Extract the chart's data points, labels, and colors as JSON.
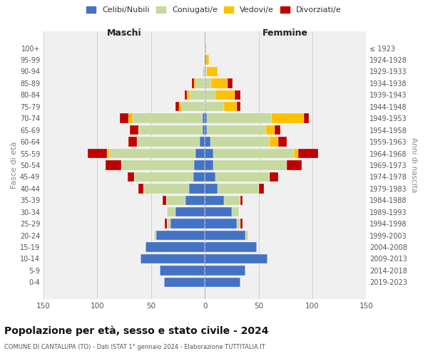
{
  "age_groups": [
    "0-4",
    "5-9",
    "10-14",
    "15-19",
    "20-24",
    "25-29",
    "30-34",
    "35-39",
    "40-44",
    "45-49",
    "50-54",
    "55-59",
    "60-64",
    "65-69",
    "70-74",
    "75-79",
    "80-84",
    "85-89",
    "90-94",
    "95-99",
    "100+"
  ],
  "birth_years": [
    "2019-2023",
    "2014-2018",
    "2009-2013",
    "2004-2008",
    "1999-2003",
    "1994-1998",
    "1989-1993",
    "1984-1988",
    "1979-1983",
    "1974-1978",
    "1969-1973",
    "1964-1968",
    "1959-1963",
    "1954-1958",
    "1949-1953",
    "1944-1948",
    "1939-1943",
    "1934-1938",
    "1929-1933",
    "1924-1928",
    "≤ 1923"
  ],
  "male": {
    "celibi": [
      38,
      42,
      60,
      55,
      45,
      32,
      27,
      18,
      15,
      11,
      10,
      9,
      5,
      2,
      2,
      0,
      0,
      0,
      0,
      0,
      0
    ],
    "coniugati": [
      0,
      0,
      0,
      0,
      2,
      3,
      8,
      18,
      42,
      55,
      68,
      80,
      58,
      60,
      65,
      22,
      14,
      8,
      2,
      1,
      0
    ],
    "vedovi": [
      0,
      0,
      0,
      0,
      0,
      0,
      0,
      0,
      0,
      0,
      0,
      2,
      0,
      0,
      4,
      2,
      3,
      2,
      0,
      0,
      0
    ],
    "divorziati": [
      0,
      0,
      0,
      0,
      0,
      2,
      0,
      3,
      5,
      6,
      14,
      18,
      8,
      8,
      8,
      3,
      2,
      2,
      0,
      0,
      0
    ]
  },
  "female": {
    "celibi": [
      33,
      38,
      58,
      48,
      38,
      30,
      25,
      18,
      12,
      10,
      8,
      8,
      5,
      2,
      2,
      0,
      0,
      0,
      0,
      1,
      0
    ],
    "coniugati": [
      0,
      0,
      0,
      0,
      2,
      3,
      7,
      15,
      38,
      50,
      68,
      75,
      55,
      55,
      60,
      18,
      10,
      6,
      2,
      0,
      0
    ],
    "vedovi": [
      0,
      0,
      0,
      0,
      0,
      0,
      0,
      0,
      0,
      0,
      0,
      4,
      8,
      8,
      30,
      12,
      18,
      15,
      10,
      3,
      1
    ],
    "divorziati": [
      0,
      0,
      0,
      0,
      0,
      2,
      0,
      2,
      5,
      8,
      14,
      18,
      8,
      5,
      5,
      3,
      5,
      5,
      0,
      0,
      0
    ]
  },
  "colors": {
    "celibi": "#4472c4",
    "coniugati": "#c5d9a0",
    "vedovi": "#ffc000",
    "divorziati": "#c00000"
  },
  "legend_labels": [
    "Celibi/Nubili",
    "Coniugati/e",
    "Vedovi/e",
    "Divorziati/e"
  ],
  "xlim": 150,
  "title": "Popolazione per età, sesso e stato civile - 2024",
  "subtitle": "COMUNE DI CANTALUPA (TO) - Dati ISTAT 1° gennaio 2024 - Elaborazione TUTTITALIA.IT",
  "ylabel_left": "Fasce di età",
  "ylabel_right": "Anni di nascita",
  "xlabel_left": "Maschi",
  "xlabel_right": "Femmine"
}
